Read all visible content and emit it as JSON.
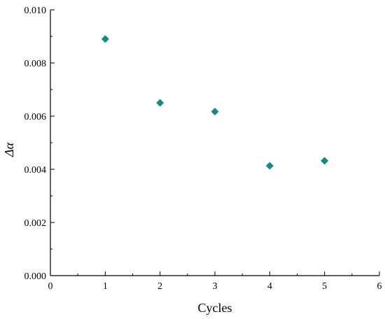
{
  "chart_data": {
    "type": "scatter",
    "xlabel": "Cycles",
    "ylabel": "Δα",
    "xlim": [
      0,
      6
    ],
    "ylim": [
      0,
      0.01
    ],
    "x_ticks": [
      "0",
      "1",
      "2",
      "3",
      "4",
      "5",
      "6"
    ],
    "y_ticks": [
      "0.000",
      "0.002",
      "0.004",
      "0.006",
      "0.008",
      "0.010"
    ],
    "grid": false,
    "legend": "none",
    "marker": "diamond",
    "marker_color": "#138a86",
    "series": [
      {
        "points": [
          {
            "x": 1,
            "y": 0.0089
          },
          {
            "x": 2,
            "y": 0.0065
          },
          {
            "x": 3,
            "y": 0.00617
          },
          {
            "x": 4,
            "y": 0.00413
          },
          {
            "x": 5,
            "y": 0.00432
          }
        ]
      }
    ]
  }
}
